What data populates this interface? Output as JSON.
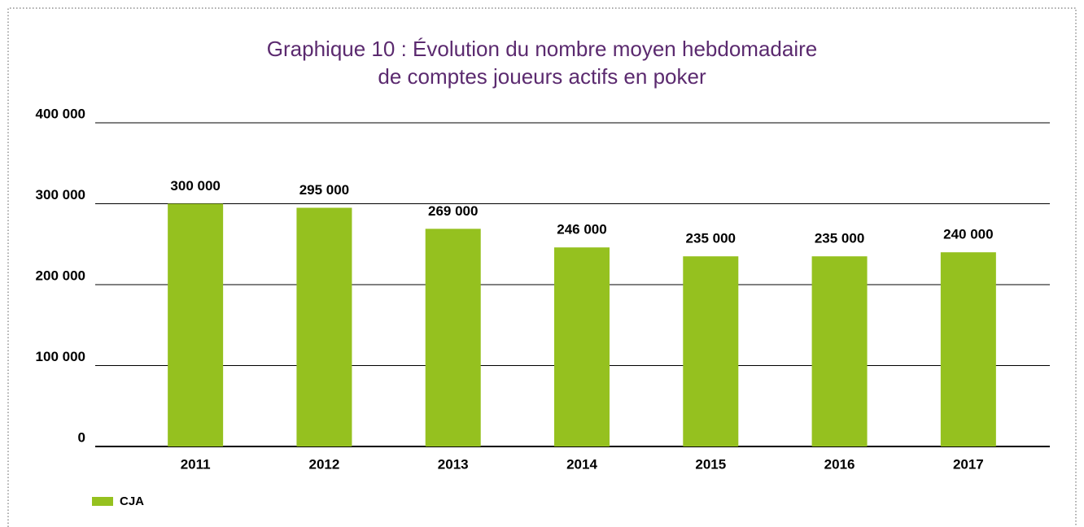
{
  "chart_data": {
    "type": "bar",
    "title": [
      "Graphique 10 : Évolution du nombre moyen hebdomadaire",
      "de comptes joueurs actifs en poker"
    ],
    "categories": [
      "2011",
      "2012",
      "2013",
      "2014",
      "2015",
      "2016",
      "2017"
    ],
    "series": [
      {
        "name": "CJA",
        "color": "#95c11f",
        "values": [
          300000,
          295000,
          269000,
          246000,
          235000,
          235000,
          240000
        ],
        "value_labels": [
          "300 000",
          "295 000",
          "269 000",
          "246 000",
          "235 000",
          "235 000",
          "240 000"
        ]
      }
    ],
    "ylim": [
      0,
      400000
    ],
    "yticks": [
      0,
      {
        "value": 100000,
        "label": "100 000"
      },
      {
        "value": 200000,
        "label": "200 000"
      },
      {
        "value": 300000,
        "label": "300 000"
      },
      {
        "value": 400000,
        "label": "400 000"
      }
    ],
    "grid": true,
    "legend": "bottom-left"
  }
}
